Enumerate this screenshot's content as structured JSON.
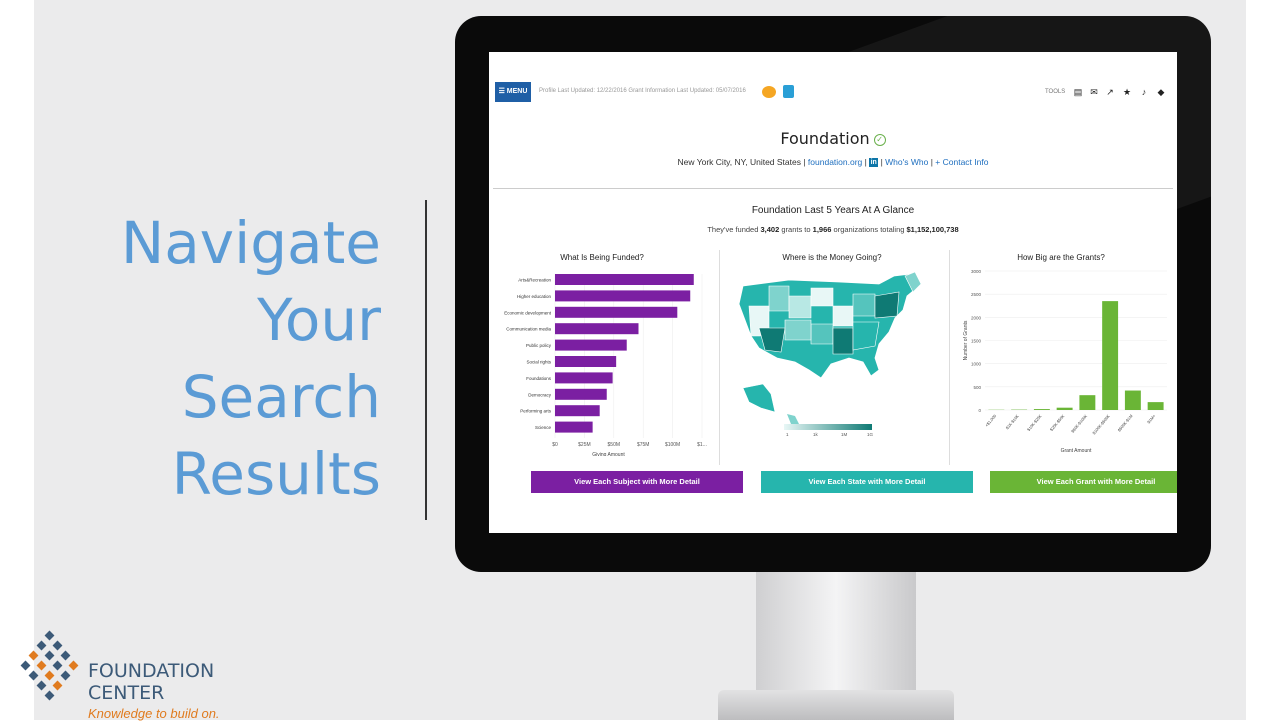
{
  "slide": {
    "headline": [
      "Navigate",
      "Your",
      "Search",
      "Results"
    ],
    "colors": {
      "headline": "#5b9bd5"
    }
  },
  "brand": {
    "name_line1": "FOUNDATION",
    "name_line2": "CENTER",
    "tagline": "Knowledge to build on."
  },
  "screen": {
    "menu_label": "MENU",
    "profile_meta": "Profile Last Updated: 12/22/2016   Grant Information Last Updated: 05/07/2016",
    "tools_label": "TOOLS",
    "tool_icons": [
      "document-icon",
      "mail-icon",
      "external-link-icon",
      "star-icon",
      "bell-icon",
      "tag-icon"
    ],
    "org": {
      "title": "Foundation",
      "location": "New York City, NY, United States",
      "website": "foundation.org",
      "linkedin": "in",
      "whos_who": "Who's Who",
      "contact": "+ Contact Info"
    },
    "glance": {
      "title": "Foundation Last 5 Years At A Glance",
      "sub_prefix": "They've funded",
      "grants": "3,402",
      "sub_mid1": "grants to",
      "orgs": "1,966",
      "sub_mid2": "organizations totaling",
      "total": "$1,152,100,738"
    },
    "panels": {
      "subject": {
        "title": "What Is Being Funded?",
        "cta": "View Each Subject with More Detail",
        "color": "#7b1fa2"
      },
      "state": {
        "title": "Where is the Money Going?",
        "cta": "View Each State with More Detail",
        "color": "#26b5ad"
      },
      "grant": {
        "title": "How Big are the Grants?",
        "cta": "View Each Grant with More Detail",
        "color": "#6ab536"
      }
    }
  },
  "chart_data": [
    {
      "type": "bar",
      "orientation": "horizontal",
      "title": "What Is Being Funded?",
      "xlabel": "Giving Amount",
      "ylabel": "",
      "categories": [
        "Arts&Recreation",
        "Higher education",
        "Economic development",
        "Communication media",
        "Public policy",
        "Social rights",
        "Foundations",
        "Democracy",
        "Performing arts",
        "Science"
      ],
      "values": [
        118,
        115,
        104,
        71,
        61,
        52,
        49,
        44,
        38,
        32
      ],
      "x_ticks": [
        "$0",
        "$25M",
        "$50M",
        "$75M",
        "$100M",
        "$1..."
      ],
      "xlim": [
        0,
        125
      ],
      "color": "#7b1fa2"
    },
    {
      "type": "heatmap",
      "title": "Where is the Money Going?",
      "legend_ticks": [
        "1",
        "1k",
        "1M",
        "1G"
      ],
      "colors": [
        "#d8f3f1",
        "#26b5ad",
        "#0f7a74"
      ]
    },
    {
      "type": "bar",
      "title": "How Big are the Grants?",
      "xlabel": "Grant Amount",
      "ylabel": "Number of Grants",
      "categories": [
        "<$1,000",
        "$1K-$10K",
        "$10K-$25K",
        "$25K-$50K",
        "$50K-$100K",
        "$100K-$500K",
        "$500K-$1M",
        "$1M+"
      ],
      "values": [
        5,
        8,
        20,
        50,
        320,
        2350,
        420,
        170
      ],
      "y_ticks": [
        "0",
        "500",
        "1000",
        "1500",
        "2000",
        "2500",
        "3000"
      ],
      "ylim": [
        0,
        3000
      ],
      "color": "#6ab536"
    }
  ]
}
